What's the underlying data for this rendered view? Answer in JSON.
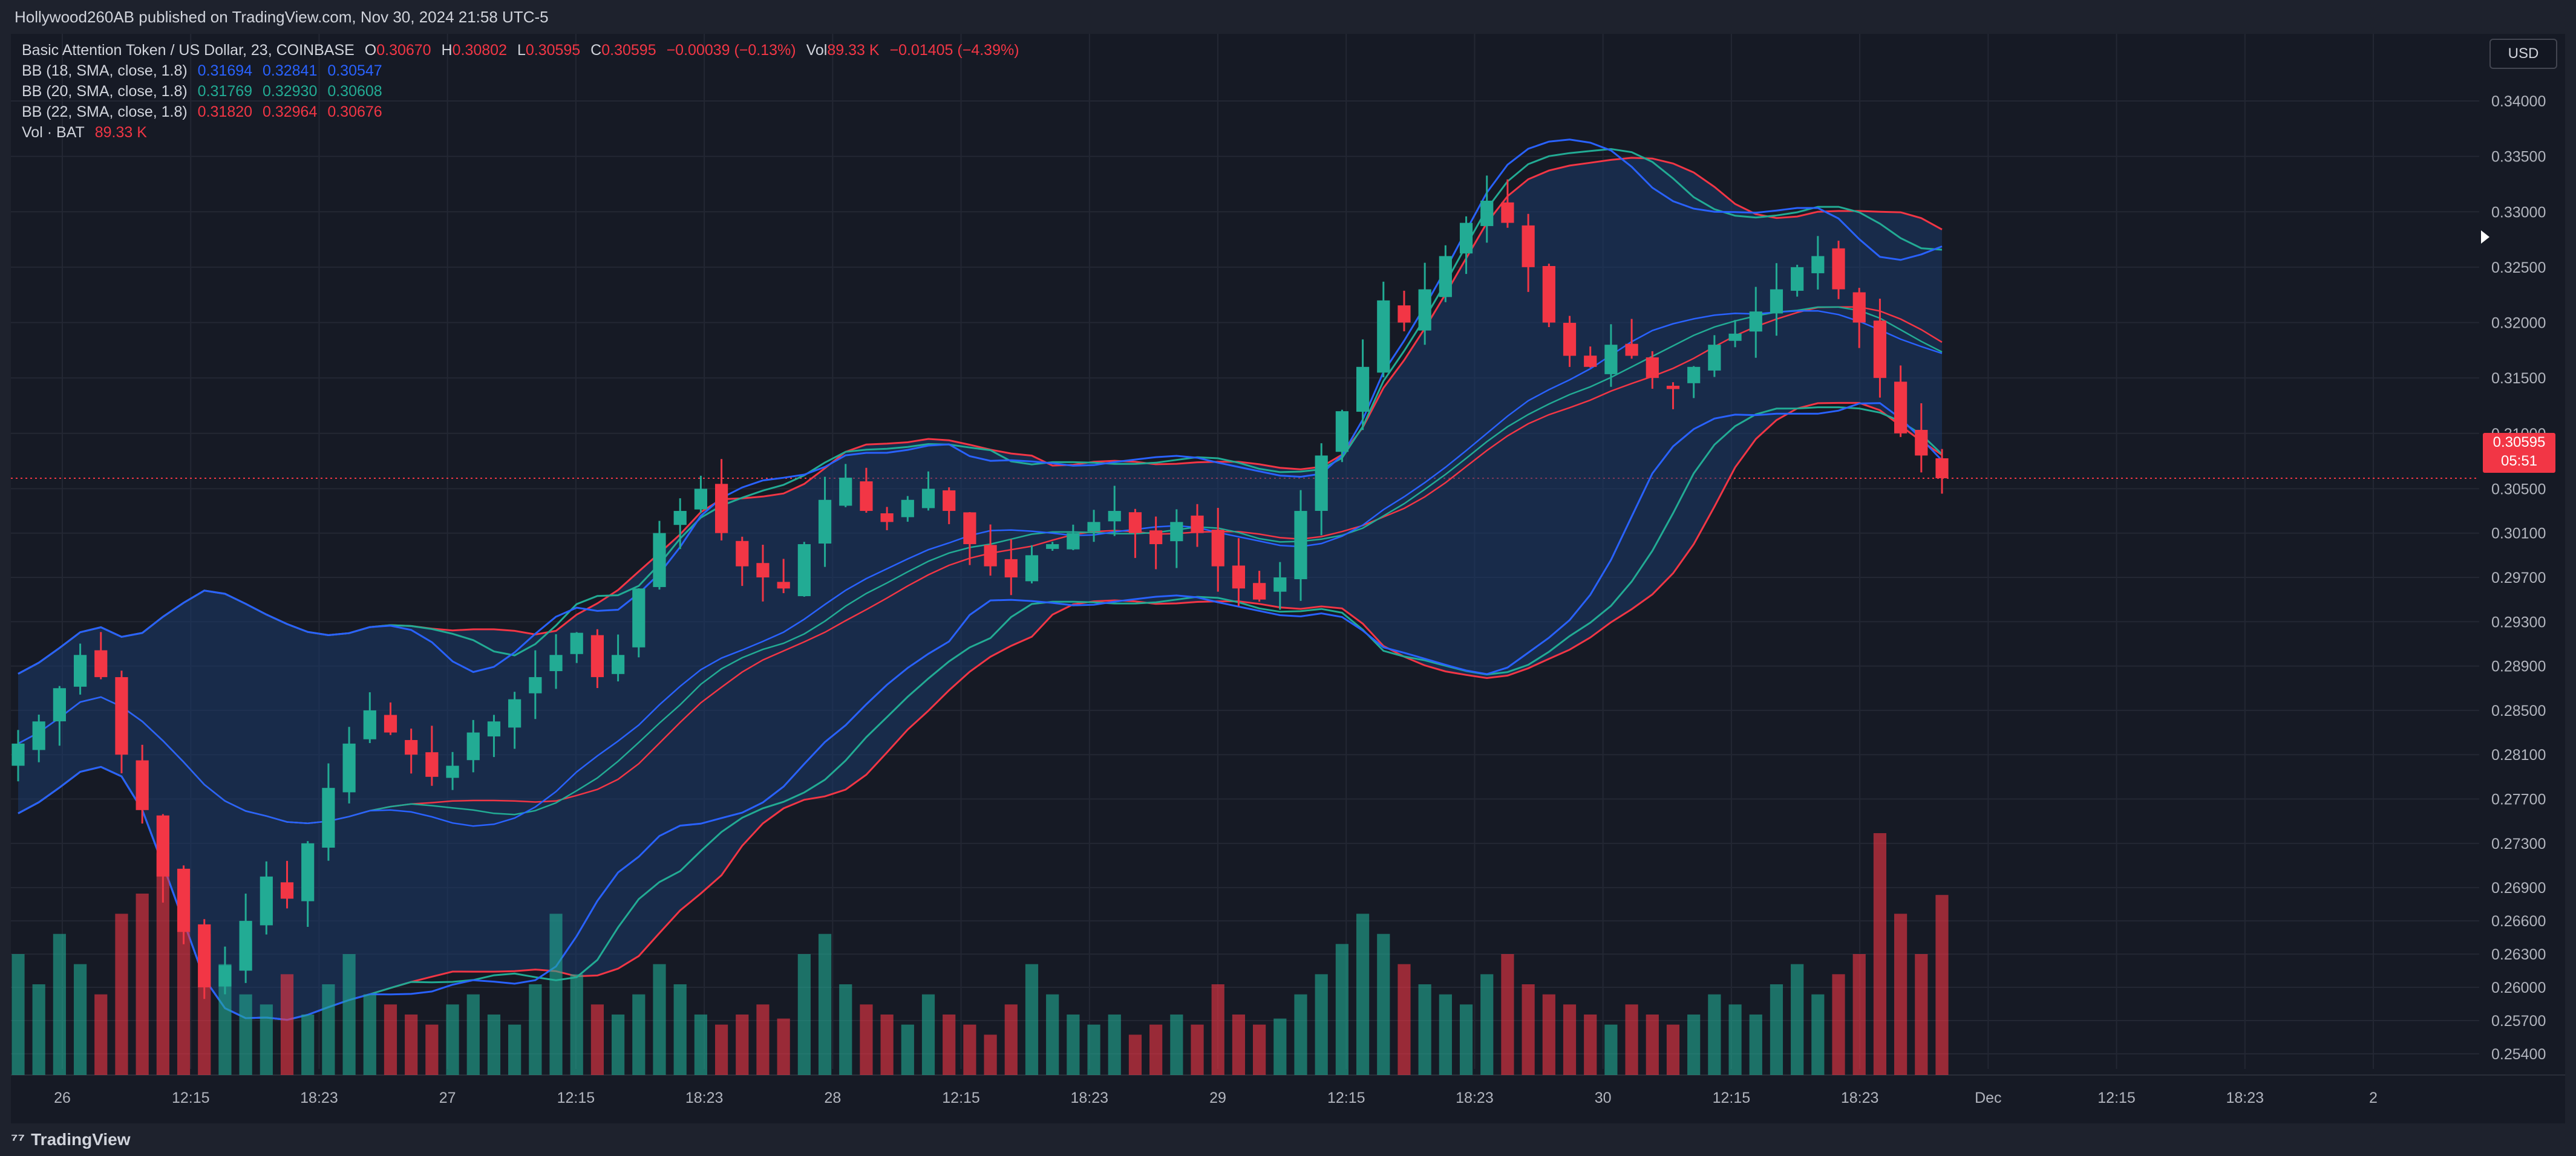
{
  "header": {
    "published": "Hollywood260AB published on TradingView.com, Nov 30, 2024 21:58 UTC-5"
  },
  "legend": {
    "symbol": "Basic Attention Token / US Dollar, 23, COINBASE",
    "o_label": "O",
    "o_value": "0.30670",
    "h_label": "H",
    "h_value": "0.30802",
    "l_label": "L",
    "l_value": "0.30595",
    "c_label": "C",
    "c_value": "0.30595",
    "change": "−0.00039 (−0.13%)",
    "vol_label": "Vol",
    "vol_value": "89.33 K",
    "vol_change": "−0.01405 (−4.39%)",
    "bb18": {
      "label": "BB (18, SMA, close, 1.8)",
      "v1": "0.31694",
      "v2": "0.32841",
      "v3": "0.30547"
    },
    "bb20": {
      "label": "BB (20, SMA, close, 1.8)",
      "v1": "0.31769",
      "v2": "0.32930",
      "v3": "0.30608"
    },
    "bb22": {
      "label": "BB (22, SMA, close, 1.8)",
      "v1": "0.31820",
      "v2": "0.32964",
      "v3": "0.30676"
    },
    "vol_ind_label": "Vol · BAT",
    "vol_ind_value": "89.33 K"
  },
  "currency_button": "USD",
  "price_tag": {
    "price": "0.30595",
    "countdown": "05:51"
  },
  "branding": {
    "name": "TradingView"
  },
  "colors": {
    "up": "#22ab94",
    "down": "#f23645",
    "bb18": "#2962ff",
    "bb20": "#22ab94",
    "bb22": "#f23645",
    "band_fill": "#1c3a6a",
    "background": "#161a25"
  },
  "chart_data": {
    "type": "candlestick",
    "interval_minutes": 23,
    "y_axis": {
      "ticks": [
        0.34,
        0.335,
        0.33,
        0.325,
        0.32,
        0.315,
        0.31,
        0.305,
        0.301,
        0.297,
        0.293,
        0.289,
        0.285,
        0.281,
        0.277,
        0.273,
        0.269,
        0.266,
        0.263,
        0.26,
        0.257,
        0.254
      ],
      "tick_labels": [
        "0.34000",
        "0.33500",
        "0.33000",
        "0.32500",
        "0.32000",
        "0.31500",
        "0.31000",
        "0.30500",
        "0.30100",
        "0.29700",
        "0.29300",
        "0.28900",
        "0.28500",
        "0.28100",
        "0.27700",
        "0.27300",
        "0.26900",
        "0.26600",
        "0.26300",
        "0.26000",
        "0.25700",
        "0.25400"
      ]
    },
    "x_axis": {
      "tick_labels": [
        "26",
        "12:15",
        "18:23",
        "27",
        "12:15",
        "18:23",
        "28",
        "12:15",
        "18:23",
        "29",
        "12:15",
        "18:23",
        "30",
        "12:15",
        "18:23",
        "Dec",
        "12:15",
        "18:23",
        "2"
      ]
    },
    "last_close": 0.30595,
    "closes": [
      0.282,
      0.284,
      0.287,
      0.29,
      0.288,
      0.281,
      0.276,
      0.27,
      0.265,
      0.26,
      0.262,
      0.266,
      0.27,
      0.268,
      0.273,
      0.278,
      0.282,
      0.285,
      0.283,
      0.281,
      0.279,
      0.28,
      0.283,
      0.284,
      0.286,
      0.288,
      0.29,
      0.292,
      0.288,
      0.29,
      0.296,
      0.301,
      0.303,
      0.305,
      0.301,
      0.298,
      0.297,
      0.296,
      0.3,
      0.304,
      0.306,
      0.303,
      0.302,
      0.304,
      0.305,
      0.303,
      0.3,
      0.298,
      0.297,
      0.299,
      0.3,
      0.301,
      0.302,
      0.303,
      0.301,
      0.3,
      0.302,
      0.301,
      0.298,
      0.296,
      0.295,
      0.297,
      0.303,
      0.308,
      0.312,
      0.316,
      0.322,
      0.32,
      0.323,
      0.326,
      0.329,
      0.331,
      0.329,
      0.325,
      0.32,
      0.317,
      0.316,
      0.318,
      0.317,
      0.315,
      0.314,
      0.316,
      0.318,
      0.319,
      0.321,
      0.323,
      0.325,
      0.326,
      0.323,
      0.32,
      0.315,
      0.31,
      0.308,
      0.30595
    ],
    "volume_unit": "K",
    "volumes": [
      60,
      45,
      70,
      55,
      40,
      80,
      90,
      110,
      85,
      70,
      55,
      40,
      35,
      50,
      30,
      45,
      60,
      40,
      35,
      30,
      25,
      35,
      40,
      30,
      25,
      45,
      80,
      50,
      35,
      30,
      40,
      55,
      45,
      30,
      25,
      30,
      35,
      28,
      60,
      70,
      45,
      35,
      30,
      25,
      40,
      30,
      25,
      20,
      35,
      55,
      40,
      30,
      25,
      30,
      20,
      25,
      30,
      25,
      45,
      30,
      25,
      28,
      40,
      50,
      65,
      80,
      70,
      55,
      45,
      40,
      35,
      50,
      60,
      45,
      40,
      35,
      30,
      25,
      35,
      30,
      25,
      30,
      40,
      35,
      30,
      45,
      55,
      40,
      50,
      60,
      120,
      80,
      60,
      89.33
    ]
  }
}
